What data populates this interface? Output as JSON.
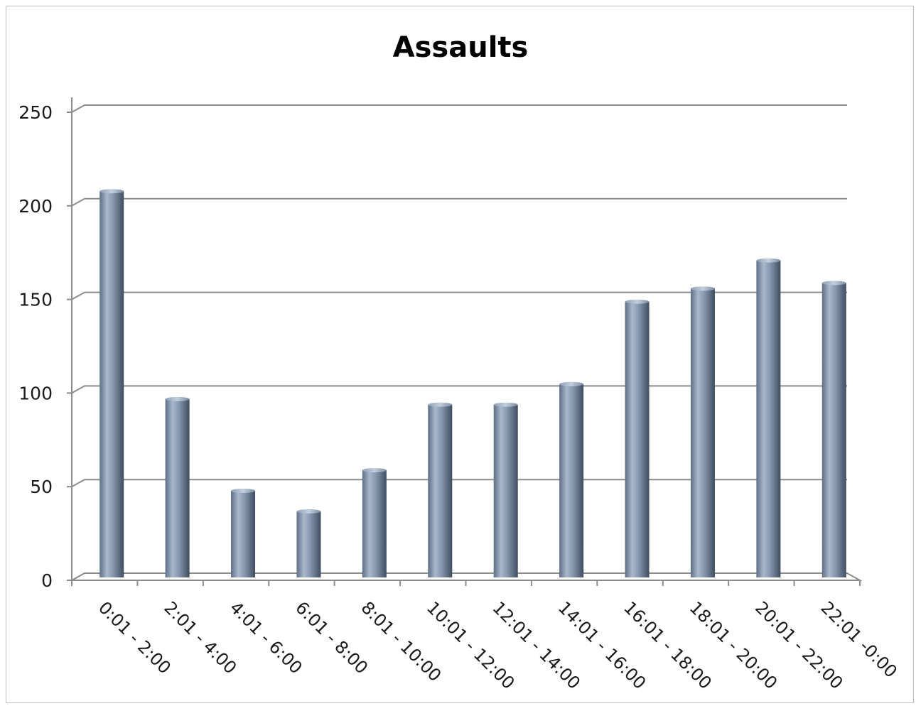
{
  "chart_data": {
    "type": "bar",
    "title": "Assaults",
    "xlabel": "",
    "ylabel": "",
    "categories": [
      "0:01 - 2:00",
      "2:01 - 4:00",
      "4:01 - 6:00",
      "6:01 - 8:00",
      "8:01 - 10:00",
      "10:01 - 12:00",
      "12:01 - 14:00",
      "14:01 - 16:00",
      "16:01 - 18:00",
      "18:01 - 20:00",
      "20:01 - 22:00",
      "22:01 -0:00"
    ],
    "values": [
      204,
      93,
      44,
      33,
      55,
      90,
      90,
      101,
      145,
      152,
      167,
      155
    ],
    "ylim": [
      0,
      250
    ],
    "yticks": [
      0,
      50,
      100,
      150,
      200,
      250
    ],
    "grid": true,
    "legend": "none",
    "bar_color": "#8497b0",
    "style": "3d-cylinder"
  }
}
